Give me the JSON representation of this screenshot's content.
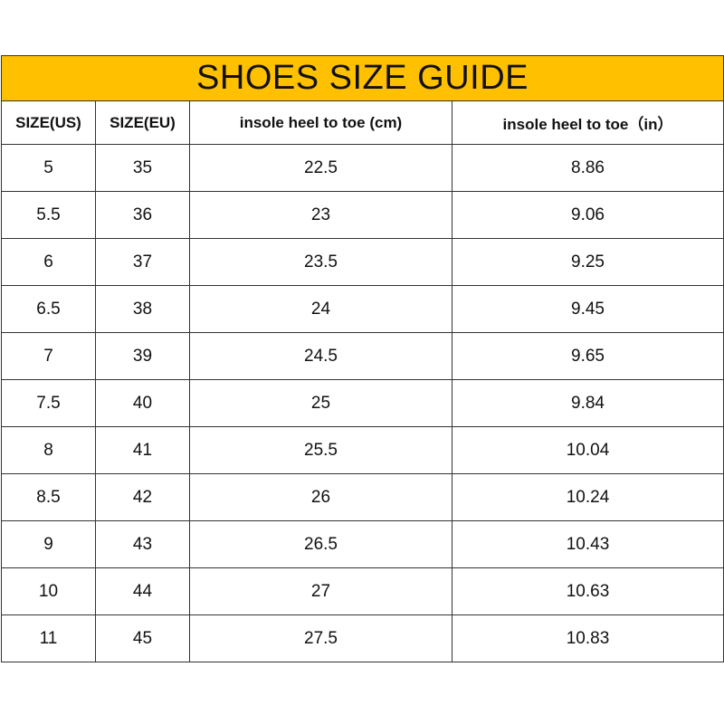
{
  "title": "SHOES SIZE GUIDE",
  "title_bg": "#FFC000",
  "headers": [
    "SIZE(US)",
    "SIZE(EU)",
    "insole heel to toe (cm)",
    "insole heel to toe（in）"
  ],
  "rows": [
    [
      "5",
      "35",
      "22.5",
      "8.86"
    ],
    [
      "5.5",
      "36",
      "23",
      "9.06"
    ],
    [
      "6",
      "37",
      "23.5",
      "9.25"
    ],
    [
      "6.5",
      "38",
      "24",
      "9.45"
    ],
    [
      "7",
      "39",
      "24.5",
      "9.65"
    ],
    [
      "7.5",
      "40",
      "25",
      "9.84"
    ],
    [
      "8",
      "41",
      "25.5",
      "10.04"
    ],
    [
      "8.5",
      "42",
      "26",
      "10.24"
    ],
    [
      "9",
      "43",
      "26.5",
      "10.43"
    ],
    [
      "10",
      "44",
      "27",
      "10.63"
    ],
    [
      "11",
      "45",
      "27.5",
      "10.83"
    ]
  ]
}
